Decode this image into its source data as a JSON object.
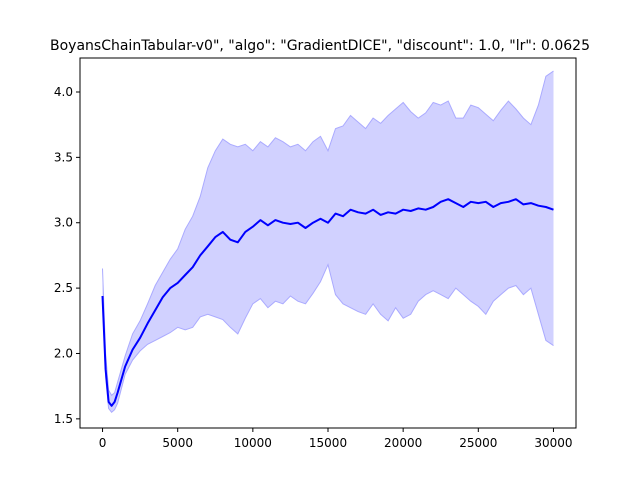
{
  "chart_data": {
    "type": "line",
    "title": "BoyansChainTabular-v0\", \"algo\": \"GradientDICE\", \"discount\": 1.0, \"lr\": 0.0625",
    "xlabel": "",
    "ylabel": "",
    "xlim": [
      -1500,
      31500
    ],
    "ylim": [
      1.43,
      4.26
    ],
    "xticks": [
      0,
      5000,
      10000,
      15000,
      20000,
      25000,
      30000
    ],
    "yticks": [
      1.5,
      2.0,
      2.5,
      3.0,
      3.5,
      4.0
    ],
    "ytick_labels": [
      "1.5",
      "2.0",
      "2.5",
      "3.0",
      "3.5",
      "4.0"
    ],
    "grid": false,
    "colors": {
      "line": "#0000ff",
      "band": "#ccccff",
      "band_edge": "#aaaaff"
    },
    "series": [
      {
        "x": [
          0,
          200,
          400,
          600,
          800,
          1000,
          1500,
          2000,
          2500,
          3000,
          3500,
          4000,
          4500,
          5000,
          5500,
          6000,
          6500,
          7000,
          7500,
          8000,
          8500,
          9000,
          9500,
          10000,
          10500,
          11000,
          11500,
          12000,
          12500,
          13000,
          13500,
          14000,
          14500,
          15000,
          15500,
          16000,
          16500,
          17000,
          17500,
          18000,
          18500,
          19000,
          19500,
          20000,
          20500,
          21000,
          21500,
          22000,
          22500,
          23000,
          23500,
          24000,
          24500,
          25000,
          25500,
          26000,
          26500,
          27000,
          27500,
          28000,
          28500,
          29000,
          29500,
          30000
        ],
        "mean": [
          2.44,
          1.88,
          1.63,
          1.6,
          1.63,
          1.7,
          1.9,
          2.03,
          2.12,
          2.23,
          2.33,
          2.43,
          2.5,
          2.54,
          2.6,
          2.66,
          2.75,
          2.82,
          2.89,
          2.93,
          2.87,
          2.85,
          2.93,
          2.97,
          3.02,
          2.98,
          3.02,
          3.0,
          2.99,
          3.0,
          2.96,
          3.0,
          3.03,
          3.0,
          3.07,
          3.05,
          3.1,
          3.08,
          3.07,
          3.1,
          3.06,
          3.08,
          3.07,
          3.1,
          3.09,
          3.11,
          3.1,
          3.12,
          3.16,
          3.18,
          3.15,
          3.12,
          3.16,
          3.15,
          3.16,
          3.12,
          3.15,
          3.16,
          3.18,
          3.14,
          3.15,
          3.13,
          3.12,
          3.1
        ],
        "upper": [
          2.65,
          2.0,
          1.72,
          1.68,
          1.7,
          1.78,
          1.98,
          2.15,
          2.25,
          2.38,
          2.52,
          2.62,
          2.72,
          2.8,
          2.95,
          3.05,
          3.2,
          3.42,
          3.55,
          3.64,
          3.6,
          3.58,
          3.6,
          3.55,
          3.62,
          3.58,
          3.65,
          3.62,
          3.58,
          3.6,
          3.55,
          3.62,
          3.66,
          3.55,
          3.72,
          3.74,
          3.82,
          3.77,
          3.72,
          3.8,
          3.76,
          3.82,
          3.87,
          3.92,
          3.85,
          3.8,
          3.84,
          3.92,
          3.9,
          3.93,
          3.8,
          3.8,
          3.9,
          3.88,
          3.83,
          3.78,
          3.86,
          3.93,
          3.87,
          3.8,
          3.75,
          3.9,
          4.12,
          4.16
        ],
        "lower": [
          2.42,
          1.82,
          1.58,
          1.55,
          1.57,
          1.62,
          1.84,
          1.95,
          2.02,
          2.07,
          2.1,
          2.13,
          2.16,
          2.2,
          2.18,
          2.2,
          2.28,
          2.3,
          2.28,
          2.26,
          2.2,
          2.15,
          2.27,
          2.38,
          2.42,
          2.35,
          2.4,
          2.38,
          2.44,
          2.4,
          2.38,
          2.46,
          2.55,
          2.68,
          2.45,
          2.38,
          2.35,
          2.32,
          2.3,
          2.38,
          2.3,
          2.25,
          2.35,
          2.27,
          2.3,
          2.4,
          2.45,
          2.48,
          2.45,
          2.42,
          2.5,
          2.45,
          2.4,
          2.36,
          2.3,
          2.4,
          2.45,
          2.5,
          2.52,
          2.45,
          2.5,
          2.3,
          2.1,
          2.06
        ]
      }
    ]
  }
}
